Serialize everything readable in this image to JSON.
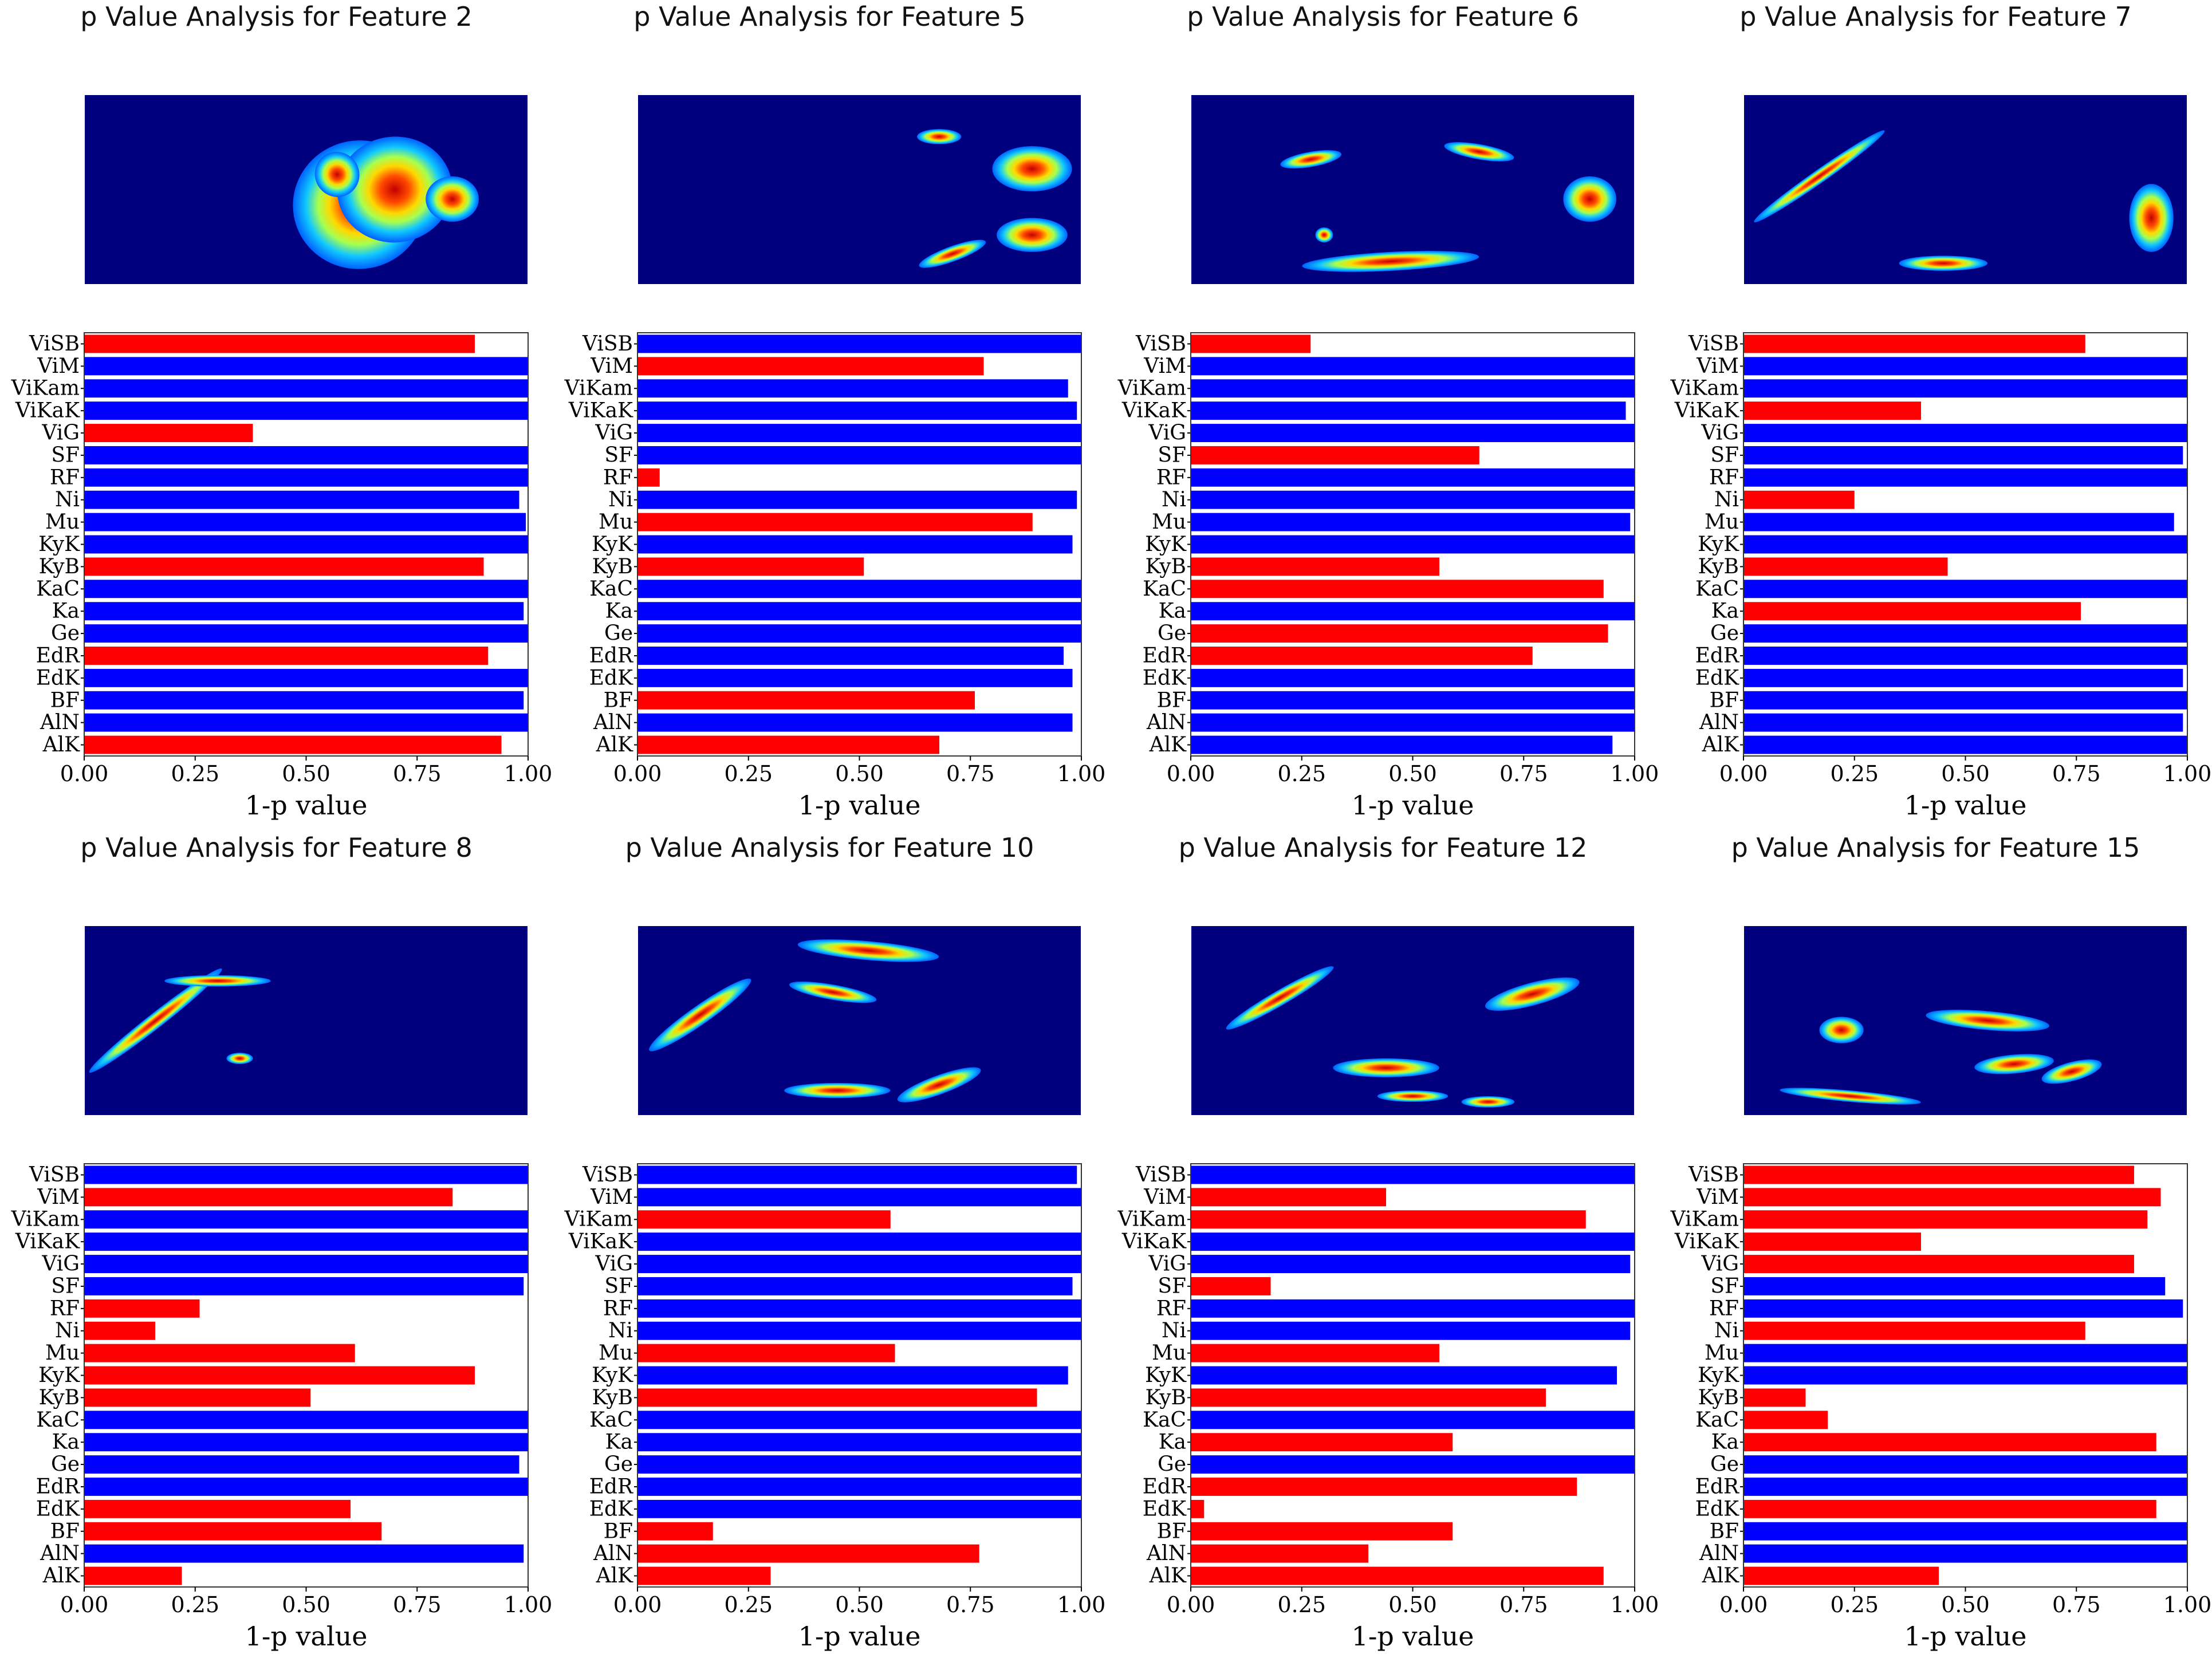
{
  "colors": {
    "above_threshold": "#0000ff",
    "below_threshold": "#ff0000",
    "spectrogram_background": "#00007f"
  },
  "threshold": 0.95,
  "chart_data": [
    {
      "type": "bar",
      "orientation": "horizontal",
      "title": "p Value Analysis for Feature 2",
      "xlabel": "1-p value",
      "xlim": [
        0,
        1
      ],
      "xticks": [
        "0.00",
        "0.25",
        "0.50",
        "0.75",
        "1.00"
      ],
      "categories": [
        "ViSB",
        "ViM",
        "ViKam",
        "ViKaK",
        "ViG",
        "SF",
        "RF",
        "Ni",
        "Mu",
        "KyK",
        "KyB",
        "KaC",
        "Ka",
        "Ge",
        "EdR",
        "EdK",
        "BF",
        "AlN",
        "AlK"
      ],
      "values": [
        0.88,
        1.0,
        1.0,
        1.0,
        0.38,
        1.0,
        1.0,
        0.98,
        0.995,
        1.0,
        0.9,
        1.0,
        0.99,
        1.0,
        0.91,
        1.0,
        0.99,
        1.0,
        0.94
      ]
    },
    {
      "type": "bar",
      "orientation": "horizontal",
      "title": "p Value Analysis for Feature 5",
      "xlabel": "1-p value",
      "xlim": [
        0,
        1
      ],
      "xticks": [
        "0.00",
        "0.25",
        "0.50",
        "0.75",
        "1.00"
      ],
      "categories": [
        "ViSB",
        "ViM",
        "ViKam",
        "ViKaK",
        "ViG",
        "SF",
        "RF",
        "Ni",
        "Mu",
        "KyK",
        "KyB",
        "KaC",
        "Ka",
        "Ge",
        "EdR",
        "EdK",
        "BF",
        "AlN",
        "AlK"
      ],
      "values": [
        1.0,
        0.78,
        0.97,
        0.99,
        1.0,
        1.0,
        0.05,
        0.99,
        0.89,
        0.98,
        0.51,
        1.0,
        1.0,
        1.0,
        0.96,
        0.98,
        0.76,
        0.98,
        0.68
      ]
    },
    {
      "type": "bar",
      "orientation": "horizontal",
      "title": "p Value Analysis for Feature 6",
      "xlabel": "1-p value",
      "xlim": [
        0,
        1
      ],
      "xticks": [
        "0.00",
        "0.25",
        "0.50",
        "0.75",
        "1.00"
      ],
      "categories": [
        "ViSB",
        "ViM",
        "ViKam",
        "ViKaK",
        "ViG",
        "SF",
        "RF",
        "Ni",
        "Mu",
        "KyK",
        "KyB",
        "KaC",
        "Ka",
        "Ge",
        "EdR",
        "EdK",
        "BF",
        "AlN",
        "AlK"
      ],
      "values": [
        0.27,
        1.0,
        1.0,
        0.98,
        1.0,
        0.65,
        1.0,
        1.0,
        0.99,
        1.0,
        0.56,
        0.93,
        1.0,
        0.94,
        0.77,
        1.0,
        1.0,
        1.0,
        0.95
      ]
    },
    {
      "type": "bar",
      "orientation": "horizontal",
      "title": "p Value Analysis for Feature 7",
      "xlabel": "1-p value",
      "xlim": [
        0,
        1
      ],
      "xticks": [
        "0.00",
        "0.25",
        "0.50",
        "0.75",
        "1.00"
      ],
      "categories": [
        "ViSB",
        "ViM",
        "ViKam",
        "ViKaK",
        "ViG",
        "SF",
        "RF",
        "Ni",
        "Mu",
        "KyK",
        "KyB",
        "KaC",
        "Ka",
        "Ge",
        "EdR",
        "EdK",
        "BF",
        "AlN",
        "AlK"
      ],
      "values": [
        0.77,
        1.0,
        1.0,
        0.4,
        1.0,
        0.99,
        1.0,
        0.25,
        0.97,
        1.0,
        0.46,
        1.0,
        0.76,
        1.0,
        1.0,
        0.99,
        1.0,
        0.99,
        1.0
      ]
    },
    {
      "type": "bar",
      "orientation": "horizontal",
      "title": "p Value Analysis for Feature 8",
      "xlabel": "1-p value",
      "xlim": [
        0,
        1
      ],
      "xticks": [
        "0.00",
        "0.25",
        "0.50",
        "0.75",
        "1.00"
      ],
      "categories": [
        "ViSB",
        "ViM",
        "ViKam",
        "ViKaK",
        "ViG",
        "SF",
        "RF",
        "Ni",
        "Mu",
        "KyK",
        "KyB",
        "KaC",
        "Ka",
        "Ge",
        "EdR",
        "EdK",
        "BF",
        "AlN",
        "AlK"
      ],
      "values": [
        1.0,
        0.83,
        1.0,
        1.0,
        1.0,
        0.99,
        0.26,
        0.16,
        0.61,
        0.88,
        0.51,
        1.0,
        1.0,
        0.98,
        1.0,
        0.6,
        0.67,
        0.99,
        0.22
      ]
    },
    {
      "type": "bar",
      "orientation": "horizontal",
      "title": "p Value Analysis for Feature 10",
      "xlabel": "1-p value",
      "xlim": [
        0,
        1
      ],
      "xticks": [
        "0.00",
        "0.25",
        "0.50",
        "0.75",
        "1.00"
      ],
      "categories": [
        "ViSB",
        "ViM",
        "ViKam",
        "ViKaK",
        "ViG",
        "SF",
        "RF",
        "Ni",
        "Mu",
        "KyK",
        "KyB",
        "KaC",
        "Ka",
        "Ge",
        "EdR",
        "EdK",
        "BF",
        "AlN",
        "AlK"
      ],
      "values": [
        0.99,
        1.0,
        0.57,
        1.0,
        1.0,
        0.98,
        1.0,
        1.0,
        0.58,
        0.97,
        0.9,
        1.0,
        1.0,
        1.0,
        1.0,
        1.0,
        0.17,
        0.77,
        0.3
      ]
    },
    {
      "type": "bar",
      "orientation": "horizontal",
      "title": "p Value Analysis for Feature 12",
      "xlabel": "1-p value",
      "xlim": [
        0,
        1
      ],
      "xticks": [
        "0.00",
        "0.25",
        "0.50",
        "0.75",
        "1.00"
      ],
      "categories": [
        "ViSB",
        "ViM",
        "ViKam",
        "ViKaK",
        "ViG",
        "SF",
        "RF",
        "Ni",
        "Mu",
        "KyK",
        "KyB",
        "KaC",
        "Ka",
        "Ge",
        "EdR",
        "EdK",
        "BF",
        "AlN",
        "AlK"
      ],
      "values": [
        1.0,
        0.44,
        0.89,
        1.0,
        0.99,
        0.18,
        1.0,
        0.99,
        0.56,
        0.96,
        0.8,
        1.0,
        0.59,
        1.0,
        0.87,
        0.03,
        0.59,
        0.4,
        0.93
      ]
    },
    {
      "type": "bar",
      "orientation": "horizontal",
      "title": "p Value Analysis for Feature 15",
      "xlabel": "1-p value",
      "xlim": [
        0,
        1
      ],
      "xticks": [
        "0.00",
        "0.25",
        "0.50",
        "0.75",
        "1.00"
      ],
      "categories": [
        "ViSB",
        "ViM",
        "ViKam",
        "ViKaK",
        "ViG",
        "SF",
        "RF",
        "Ni",
        "Mu",
        "KyK",
        "KyB",
        "KaC",
        "Ka",
        "Ge",
        "EdR",
        "EdK",
        "BF",
        "AlN",
        "AlK"
      ],
      "values": [
        0.88,
        0.94,
        0.91,
        0.4,
        0.88,
        0.95,
        0.99,
        0.77,
        1.0,
        1.0,
        0.14,
        0.19,
        0.93,
        1.0,
        1.0,
        0.93,
        1.0,
        1.0,
        0.44
      ]
    }
  ]
}
